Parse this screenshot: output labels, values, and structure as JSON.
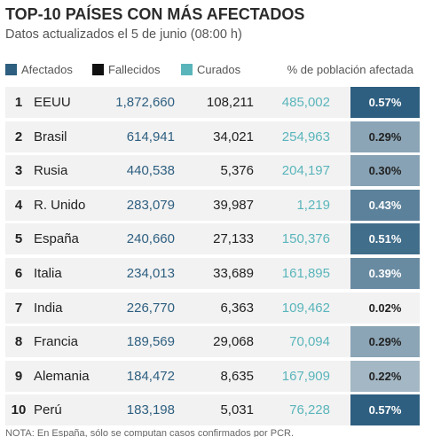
{
  "header": {
    "title": "TOP-10 PAÍSES CON MÁS AFECTADOS",
    "subtitle": "Datos actualizados el 5 de junio (08:00 h)"
  },
  "legend": {
    "afectados": "Afectados",
    "fallecidos": "Fallecidos",
    "curados": "Curados",
    "pct": "% de población afectada"
  },
  "colors": {
    "afectados": "#2e5f80",
    "fallecidos": "#111111",
    "curados": "#5ab5bb",
    "pct_low": "#f2f2f2",
    "pct_high": "#2e5f80",
    "row_bg": "#f2f2f2"
  },
  "footer": {
    "note": "NOTA: En España, sólo se computan casos confirmados por PCR."
  },
  "chart_data": {
    "type": "table",
    "title": "TOP-10 PAÍSES CON MÁS AFECTADOS",
    "subtitle": "Datos actualizados el 5 de junio (08:00 h)",
    "columns": [
      "Afectados",
      "Fallecidos",
      "Curados",
      "% de población afectada"
    ],
    "rows": [
      {
        "rank": "1",
        "country": "EEUU",
        "afectados": "1,872,660",
        "fallecidos": "108,211",
        "curados": "485,002",
        "pct_label": "0.57%",
        "pct": 0.57
      },
      {
        "rank": "2",
        "country": "Brasil",
        "afectados": "614,941",
        "fallecidos": "34,021",
        "curados": "254,963",
        "pct_label": "0.29%",
        "pct": 0.29
      },
      {
        "rank": "3",
        "country": "Rusia",
        "afectados": "440,538",
        "fallecidos": "5,376",
        "curados": "204,197",
        "pct_label": "0.30%",
        "pct": 0.3
      },
      {
        "rank": "4",
        "country": "R. Unido",
        "afectados": "283,079",
        "fallecidos": "39,987",
        "curados": "1,219",
        "pct_label": "0.43%",
        "pct": 0.43
      },
      {
        "rank": "5",
        "country": "España",
        "afectados": "240,660",
        "fallecidos": "27,133",
        "curados": "150,376",
        "pct_label": "0.51%",
        "pct": 0.51
      },
      {
        "rank": "6",
        "country": "Italia",
        "afectados": "234,013",
        "fallecidos": "33,689",
        "curados": "161,895",
        "pct_label": "0.39%",
        "pct": 0.39
      },
      {
        "rank": "7",
        "country": "India",
        "afectados": "226,770",
        "fallecidos": "6,363",
        "curados": "109,462",
        "pct_label": "0.02%",
        "pct": 0.02
      },
      {
        "rank": "8",
        "country": "Francia",
        "afectados": "189,569",
        "fallecidos": "29,068",
        "curados": "70,094",
        "pct_label": "0.29%",
        "pct": 0.29
      },
      {
        "rank": "9",
        "country": "Alemania",
        "afectados": "184,472",
        "fallecidos": "8,635",
        "curados": "167,909",
        "pct_label": "0.22%",
        "pct": 0.22
      },
      {
        "rank": "10",
        "country": "Perú",
        "afectados": "183,198",
        "fallecidos": "5,031",
        "curados": "76,228",
        "pct_label": "0.57%",
        "pct": 0.57
      }
    ],
    "pct_range": [
      0.02,
      0.57
    ]
  }
}
